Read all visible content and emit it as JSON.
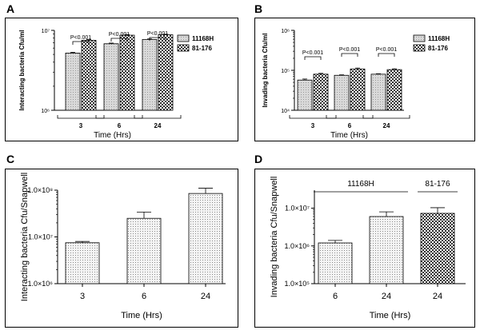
{
  "panels": [
    {
      "letter": "A"
    },
    {
      "letter": "B"
    },
    {
      "letter": "C"
    },
    {
      "letter": "D"
    }
  ],
  "colors": {
    "solid_fill": "#d9d9d9",
    "dotted_fill": "#f2f2f2",
    "checker_dark": "#333333",
    "frame": "#000000"
  },
  "chart_data": [
    {
      "type": "bar",
      "panel": "A",
      "ylabel": "Interacting bacteria Cfu/ml",
      "xlabel": "Time (Hrs)",
      "scale": "log",
      "ylim": [
        1000000,
        10000000
      ],
      "yticks": [
        {
          "value": 1000000,
          "label": "10⁶"
        },
        {
          "value": 10000000,
          "label": "10⁷"
        }
      ],
      "categories": [
        "3",
        "6",
        "24"
      ],
      "legend_position": "top-right",
      "series": [
        {
          "name": "11168H",
          "pattern": "solid-light",
          "values": [
            5200000,
            6800000,
            7700000
          ],
          "errors": [
            120000,
            130000,
            110000
          ]
        },
        {
          "name": "81-176",
          "pattern": "checker",
          "values": [
            7500000,
            8700000,
            8800000
          ],
          "errors": [
            160000,
            160000,
            150000
          ]
        }
      ],
      "annotations": [
        "P<0.001",
        "P<0.001",
        "P<0.001"
      ]
    },
    {
      "type": "bar",
      "panel": "B",
      "ylabel": "Invading bacteria Cfu/ml",
      "xlabel": "Time (Hrs)",
      "scale": "log",
      "ylim": [
        10000,
        1000000
      ],
      "yticks": [
        {
          "value": 10000,
          "label": "10⁴"
        },
        {
          "value": 100000,
          "label": "10⁵"
        },
        {
          "value": 1000000,
          "label": "10⁶"
        }
      ],
      "categories": [
        "3",
        "6",
        "24"
      ],
      "legend_position": "top-right",
      "series": [
        {
          "name": "11168H",
          "pattern": "solid-light",
          "values": [
            57000,
            75000,
            80000
          ],
          "errors": [
            3500,
            2000,
            2000
          ]
        },
        {
          "name": "81-176",
          "pattern": "checker",
          "values": [
            80000,
            108000,
            104000
          ],
          "errors": [
            4000,
            6000,
            5000
          ]
        }
      ],
      "annotations": [
        "P<0.001",
        "P<0.001",
        "P<0.001"
      ]
    },
    {
      "type": "bar",
      "panel": "C",
      "ylabel": "Interacting bacteria Cfu/Snapwell",
      "xlabel": "Time (Hrs)",
      "scale": "log",
      "ylim": [
        1000000,
        100000000
      ],
      "yticks": [
        {
          "value": 1000000,
          "label": "1.0×10⁶"
        },
        {
          "value": 10000000,
          "label": "1.0×10⁷"
        },
        {
          "value": 100000000,
          "label": "1.0×10⁸"
        }
      ],
      "categories": [
        "3",
        "6",
        "24"
      ],
      "series": [
        {
          "pattern": "dotted",
          "values": [
            7500000,
            25000000,
            85000000
          ],
          "errors": [
            500000,
            9000000,
            25000000
          ]
        }
      ]
    },
    {
      "type": "bar",
      "panel": "D",
      "ylabel": "Invading bacteria Cfu/Snapwell",
      "xlabel": "Time (Hrs)",
      "scale": "log",
      "ylim": [
        100000,
        30000000
      ],
      "yticks": [
        {
          "value": 100000,
          "label": "1.0×10⁵"
        },
        {
          "value": 1000000,
          "label": "1.0×10⁶"
        },
        {
          "value": 10000000,
          "label": "1.0×10⁷"
        }
      ],
      "categories": [
        "6",
        "24",
        "24"
      ],
      "group_labels": [
        {
          "label": "11168H"
        },
        {
          "label": "81-176"
        }
      ],
      "series": [
        {
          "patterns": [
            "dotted",
            "dotted",
            "checker"
          ],
          "values": [
            1200000,
            6000000,
            7300000
          ],
          "errors": [
            200000,
            2000000,
            3000000
          ]
        }
      ]
    }
  ]
}
